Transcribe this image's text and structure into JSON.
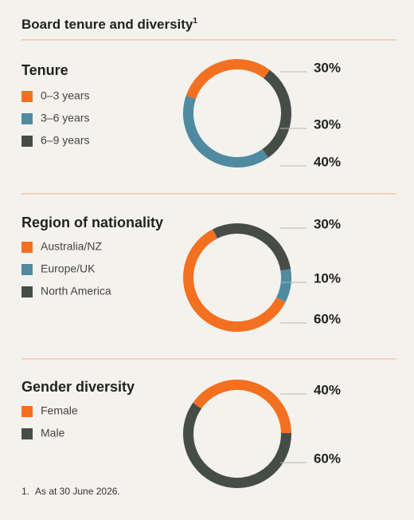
{
  "title": "Board tenure and diversity",
  "title_note": "1",
  "chart_data": [
    {
      "type": "pie",
      "title": "Tenure",
      "categories": [
        "0–3 years",
        "3–6 years",
        "6–9 years"
      ],
      "values": [
        30,
        40,
        30
      ],
      "value_labels": [
        "30%",
        "40%",
        "30%"
      ],
      "colors": [
        "#f37021",
        "#4f8aa0",
        "#464d49"
      ]
    },
    {
      "type": "pie",
      "title": "Region of nationality",
      "categories": [
        "Australia/NZ",
        "Europe/UK",
        "North America"
      ],
      "values": [
        60,
        10,
        30
      ],
      "value_labels": [
        "60%",
        "10%",
        "30%"
      ],
      "colors": [
        "#f37021",
        "#4f8aa0",
        "#464d49"
      ]
    },
    {
      "type": "pie",
      "title": "Gender diversity",
      "categories": [
        "Female",
        "Male"
      ],
      "values": [
        40,
        60
      ],
      "value_labels": [
        "40%",
        "60%"
      ],
      "colors": [
        "#f37021",
        "#464d49"
      ]
    }
  ],
  "footnote": {
    "marker": "1.",
    "text": "As at 30 June 2026."
  }
}
